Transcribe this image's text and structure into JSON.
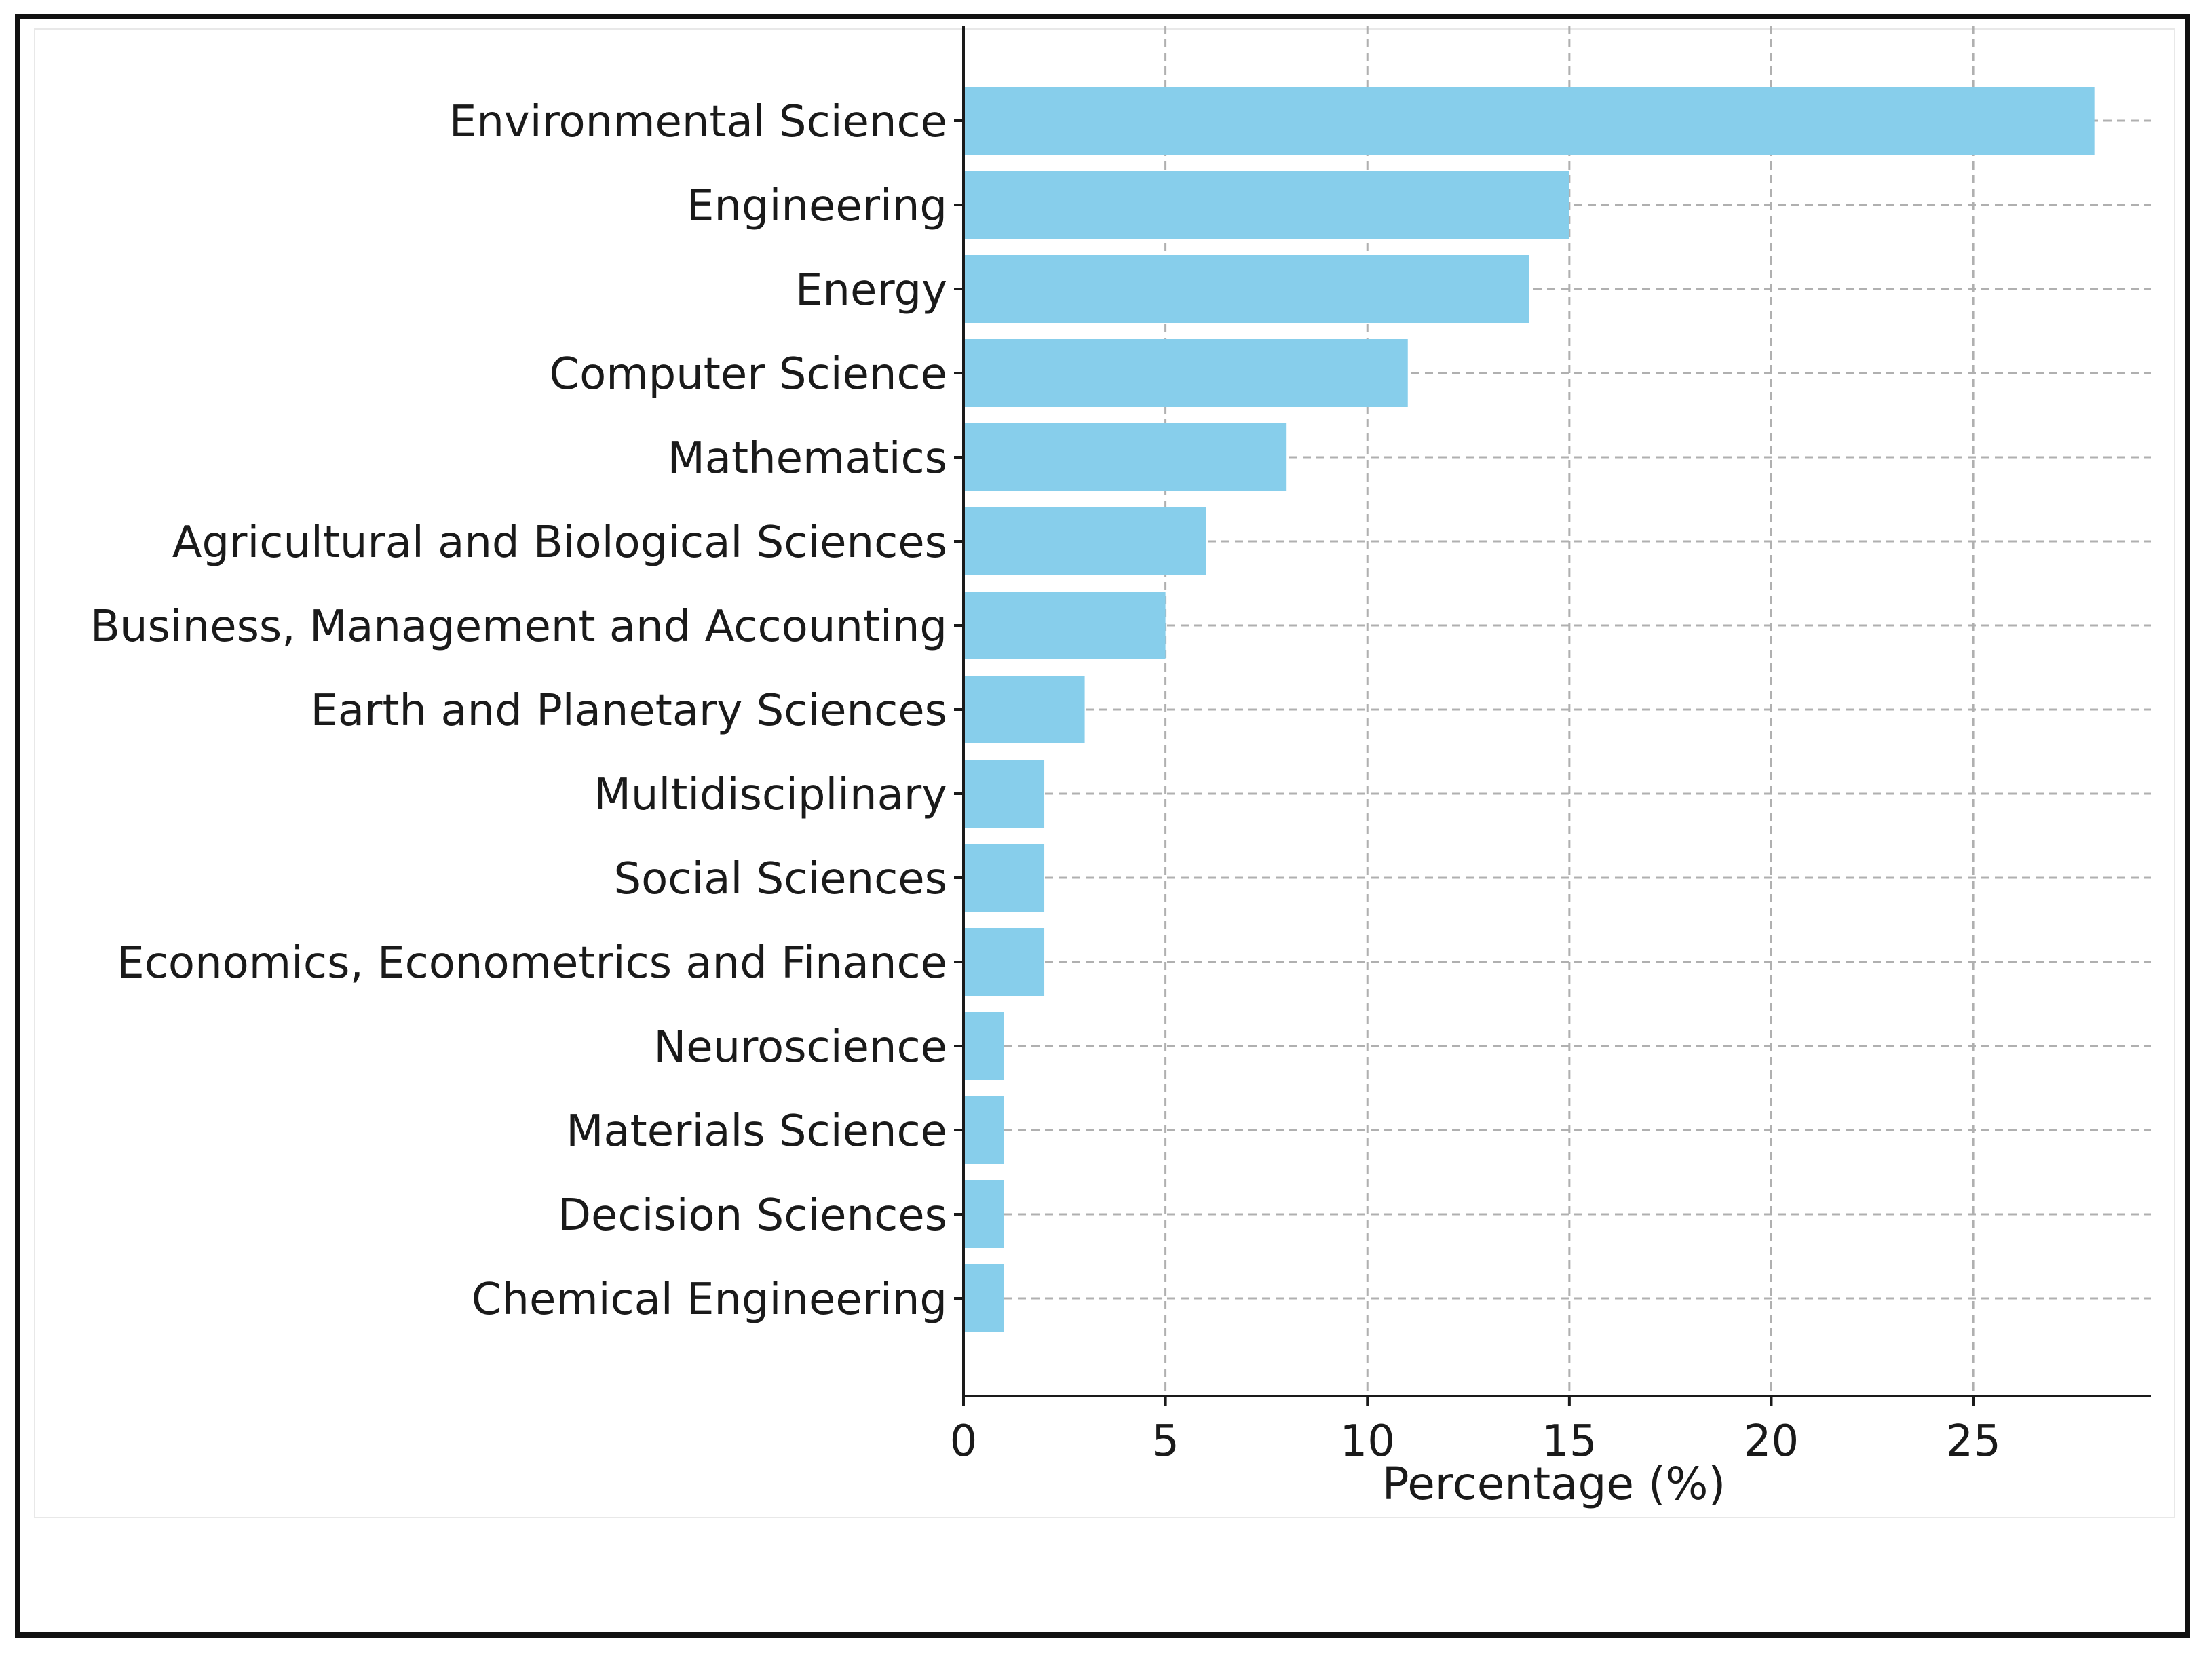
{
  "chart_data": {
    "type": "bar",
    "orientation": "horizontal",
    "title": "",
    "xlabel": "Percentage (%)",
    "ylabel": "",
    "categories": [
      "Environmental Science",
      "Engineering",
      "Energy",
      "Computer Science",
      "Mathematics",
      "Agricultural and Biological Sciences",
      "Business, Management and Accounting",
      "Earth and Planetary Sciences",
      "Multidisciplinary",
      "Social Sciences",
      "Economics, Econometrics and Finance",
      "Neuroscience",
      "Materials Science",
      "Decision Sciences",
      "Chemical Engineering"
    ],
    "values": [
      28,
      15,
      14,
      11,
      8,
      6,
      5,
      3,
      2,
      2,
      2,
      1,
      1,
      1,
      1
    ],
    "xlim": [
      0,
      29.4
    ],
    "xticks": [
      0,
      5,
      10,
      15,
      20,
      25
    ],
    "grid": true,
    "bar_color": "#87CEEB",
    "grid_color": "#b0b0b0",
    "axis_color": "#1a1a1a"
  }
}
